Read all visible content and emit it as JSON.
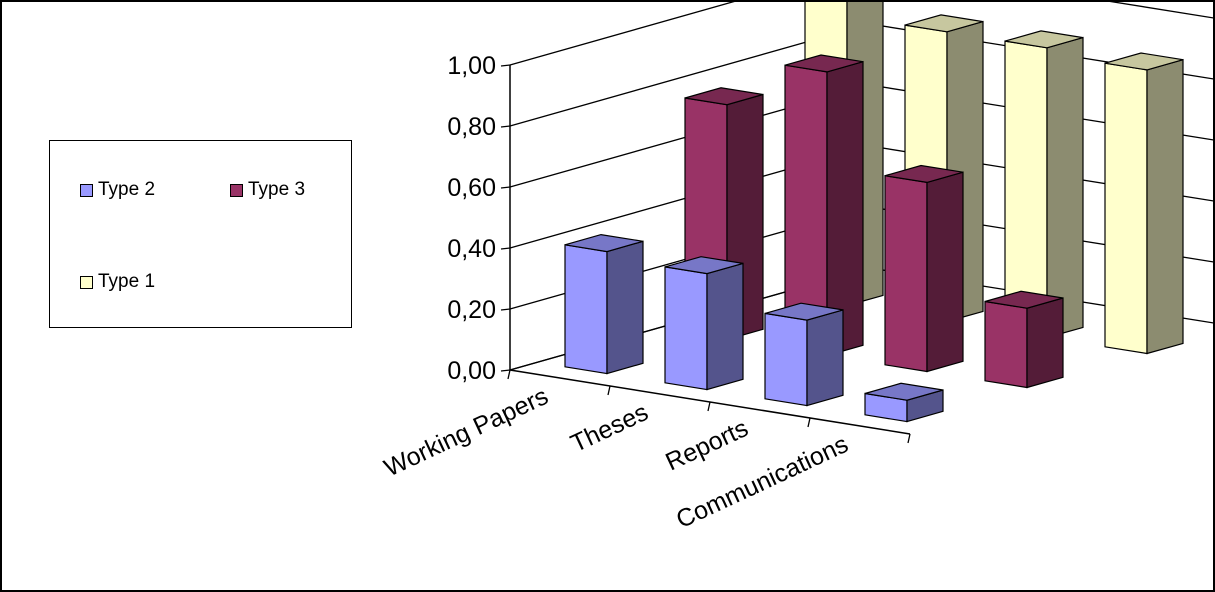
{
  "chart_data": {
    "type": "bar",
    "categories": [
      "Working Papers",
      "Theses",
      "Reports",
      "Communications"
    ],
    "series": [
      {
        "name": "Type 2",
        "values": [
          0.4,
          0.38,
          0.28,
          0.07
        ]
      },
      {
        "name": "Type 3",
        "values": [
          0.77,
          0.93,
          0.62,
          0.26
        ]
      },
      {
        "name": "Type 1",
        "values": [
          1.0,
          0.95,
          0.95,
          0.93
        ]
      }
    ],
    "yticks": [
      "0,00",
      "0,20",
      "0,40",
      "0,60",
      "0,80",
      "1,00"
    ],
    "ylim": [
      0,
      1
    ],
    "legend": "left",
    "colors": {
      "Type 2": "#9999ff",
      "Type 3": "#993366",
      "Type 1": "#ffffcc"
    }
  }
}
